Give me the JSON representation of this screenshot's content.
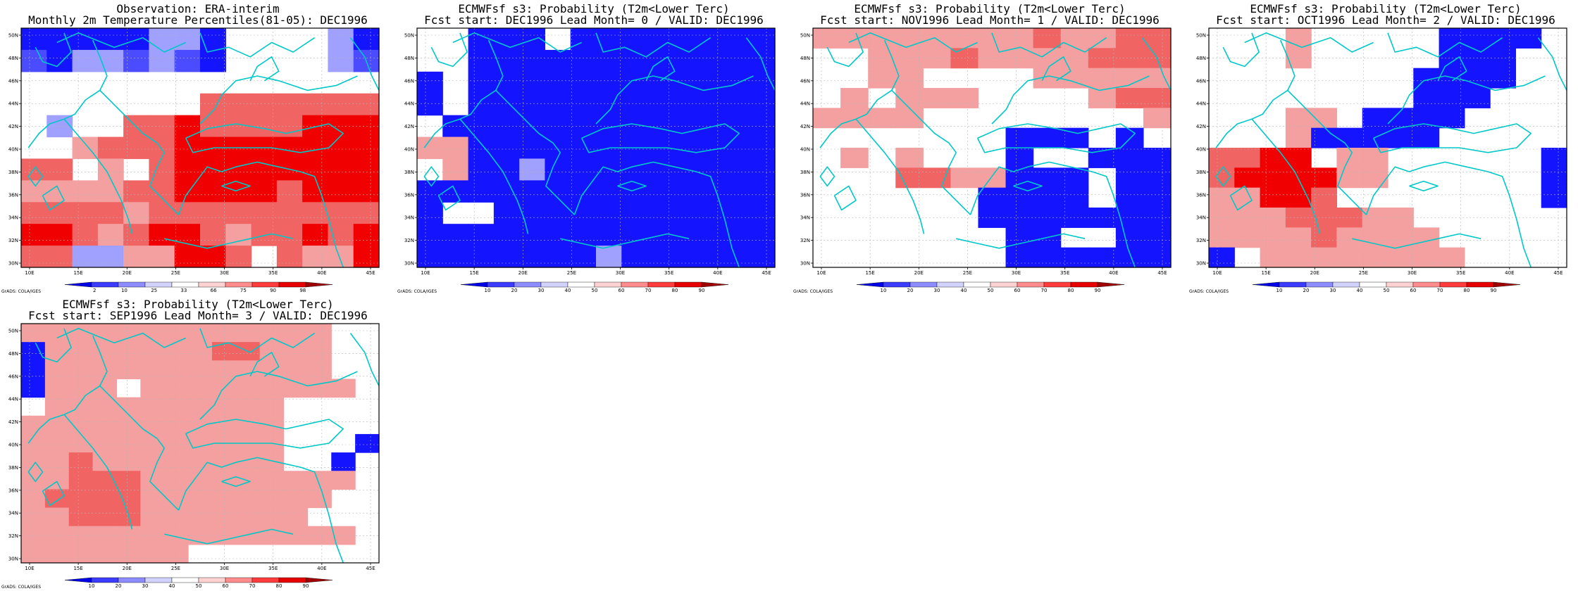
{
  "colors": {
    "blue_dark": "#1414ff",
    "blue_med": "#4b4bff",
    "blue_light": "#a0a0ff",
    "red_light": "#f5a0a0",
    "red_med": "#f06464",
    "red_dark": "#f00000",
    "coast": "#00c8c8",
    "grid": "#b4b4b4"
  },
  "axes": {
    "lat_labels": [
      "30N",
      "32N",
      "34N",
      "36N",
      "38N",
      "40N",
      "42N",
      "44N",
      "46N",
      "48N",
      "50N"
    ],
    "lon_labels": [
      "10E",
      "15E",
      "20E",
      "25E",
      "30E",
      "35E",
      "40E",
      "45E"
    ]
  },
  "credit": "GrADS: COLA/IGES",
  "panels": [
    {
      "title1": "Observation: ERA-interim",
      "title2": "Monthly 2m Temperature Percentiles(81-05): DEC1996",
      "colorbar": [
        "2",
        "10",
        "25",
        "33",
        "66",
        "75",
        "90",
        "98"
      ],
      "grid": [
        "BBBBB22B00003B",
        "1B22121B000021",
        "00000000000000",
        "00000005555555",
        "03005565555666",
        "00455566666666",
        "55040566666666",
        "44445566665666",
        "55554555555555",
        "66545665455656",
        "55334466505446"
      ]
    },
    {
      "title1": "ECMWFsf s3: Probability (T2m<Lower Terc)",
      "title2": "Fcst start: DEC1996  Lead Month= 0 / VALID: DEC1996",
      "colorbar": [
        "10",
        "20",
        "30",
        "40",
        "50",
        "60",
        "70",
        "80",
        "90"
      ],
      "grid": [
        "00BBB0BBBBBBBB",
        "00BBBBBBBBBBBB",
        "B0BBBBBBBBBBBB",
        "B0BBBBBBBBBBBB",
        "0BBBBBBBBBBBBB",
        "44BBBBBBBBBBBB",
        "04BB2BBBBBBBBB",
        "BBBBBBBBBBBBBB",
        "B00BBBBBBBBBBB",
        "BBBBBBBBBBBBBB",
        "BBBBBBB2BBBBBB"
      ]
    },
    {
      "title1": "ECMWFsf s3: Probability (T2m<Lower Terc)",
      "title2": "Fcst start: NOV1996  Lead Month= 1 / VALID: DEC1996",
      "colorbar": [
        "10",
        "20",
        "30",
        "40",
        "50",
        "60",
        "70",
        "80",
        "90"
      ],
      "grid": [
        "4444444454455",
        "0044454444555",
        "0044000044444",
        "0404440000455",
        "4444000000004",
        "0000000BBB0B0",
        "0404000B00BBB",
        "0005544BBB0BB",
        "000000BBBB0BB",
        "000000BBBBBBB",
        "0000000BB00BB",
        "0000000BBBBBB"
      ]
    },
    {
      "title1": "ECMWFsf s3: Probability (T2m<Lower Terc)",
      "title2": "Fcst start: OCT1996  Lead Month= 2 / VALID: DEC1996",
      "colorbar": [
        "10",
        "20",
        "30",
        "40",
        "50",
        "60",
        "70",
        "80",
        "90"
      ],
      "grid": [
        "000400000BBBB0",
        "000400000BBB00",
        "00000000BBBB00",
        "00000000BBB000",
        "000440BBBB0000",
        "0004BBBBB00000",
        "5566044000000B",
        "5666644000000B",
        "4466500000000B",
        "44455544000000",
        "44445444400000",
        "B0444444440000"
      ]
    },
    {
      "title1": "ECMWFsf s3: Probability (T2m<Lower Terc)",
      "title2": "Fcst start: SEP1996  Lead Month= 3 / VALID: DEC1996",
      "colorbar": [
        "10",
        "20",
        "30",
        "40",
        "50",
        "60",
        "70",
        "80",
        "90"
      ],
      "grid": [
        "44444444444440",
        "B444444455444",
        "B4444444444440",
        "B44404444444440",
        "04444444444000",
        "44444444444000",
        "44444444444000B",
        "4454444444400B",
        "44555444444444",
        "45555444444440",
        "44555444444400",
        "44444444444444",
        "44444440000000"
      ]
    }
  ]
}
